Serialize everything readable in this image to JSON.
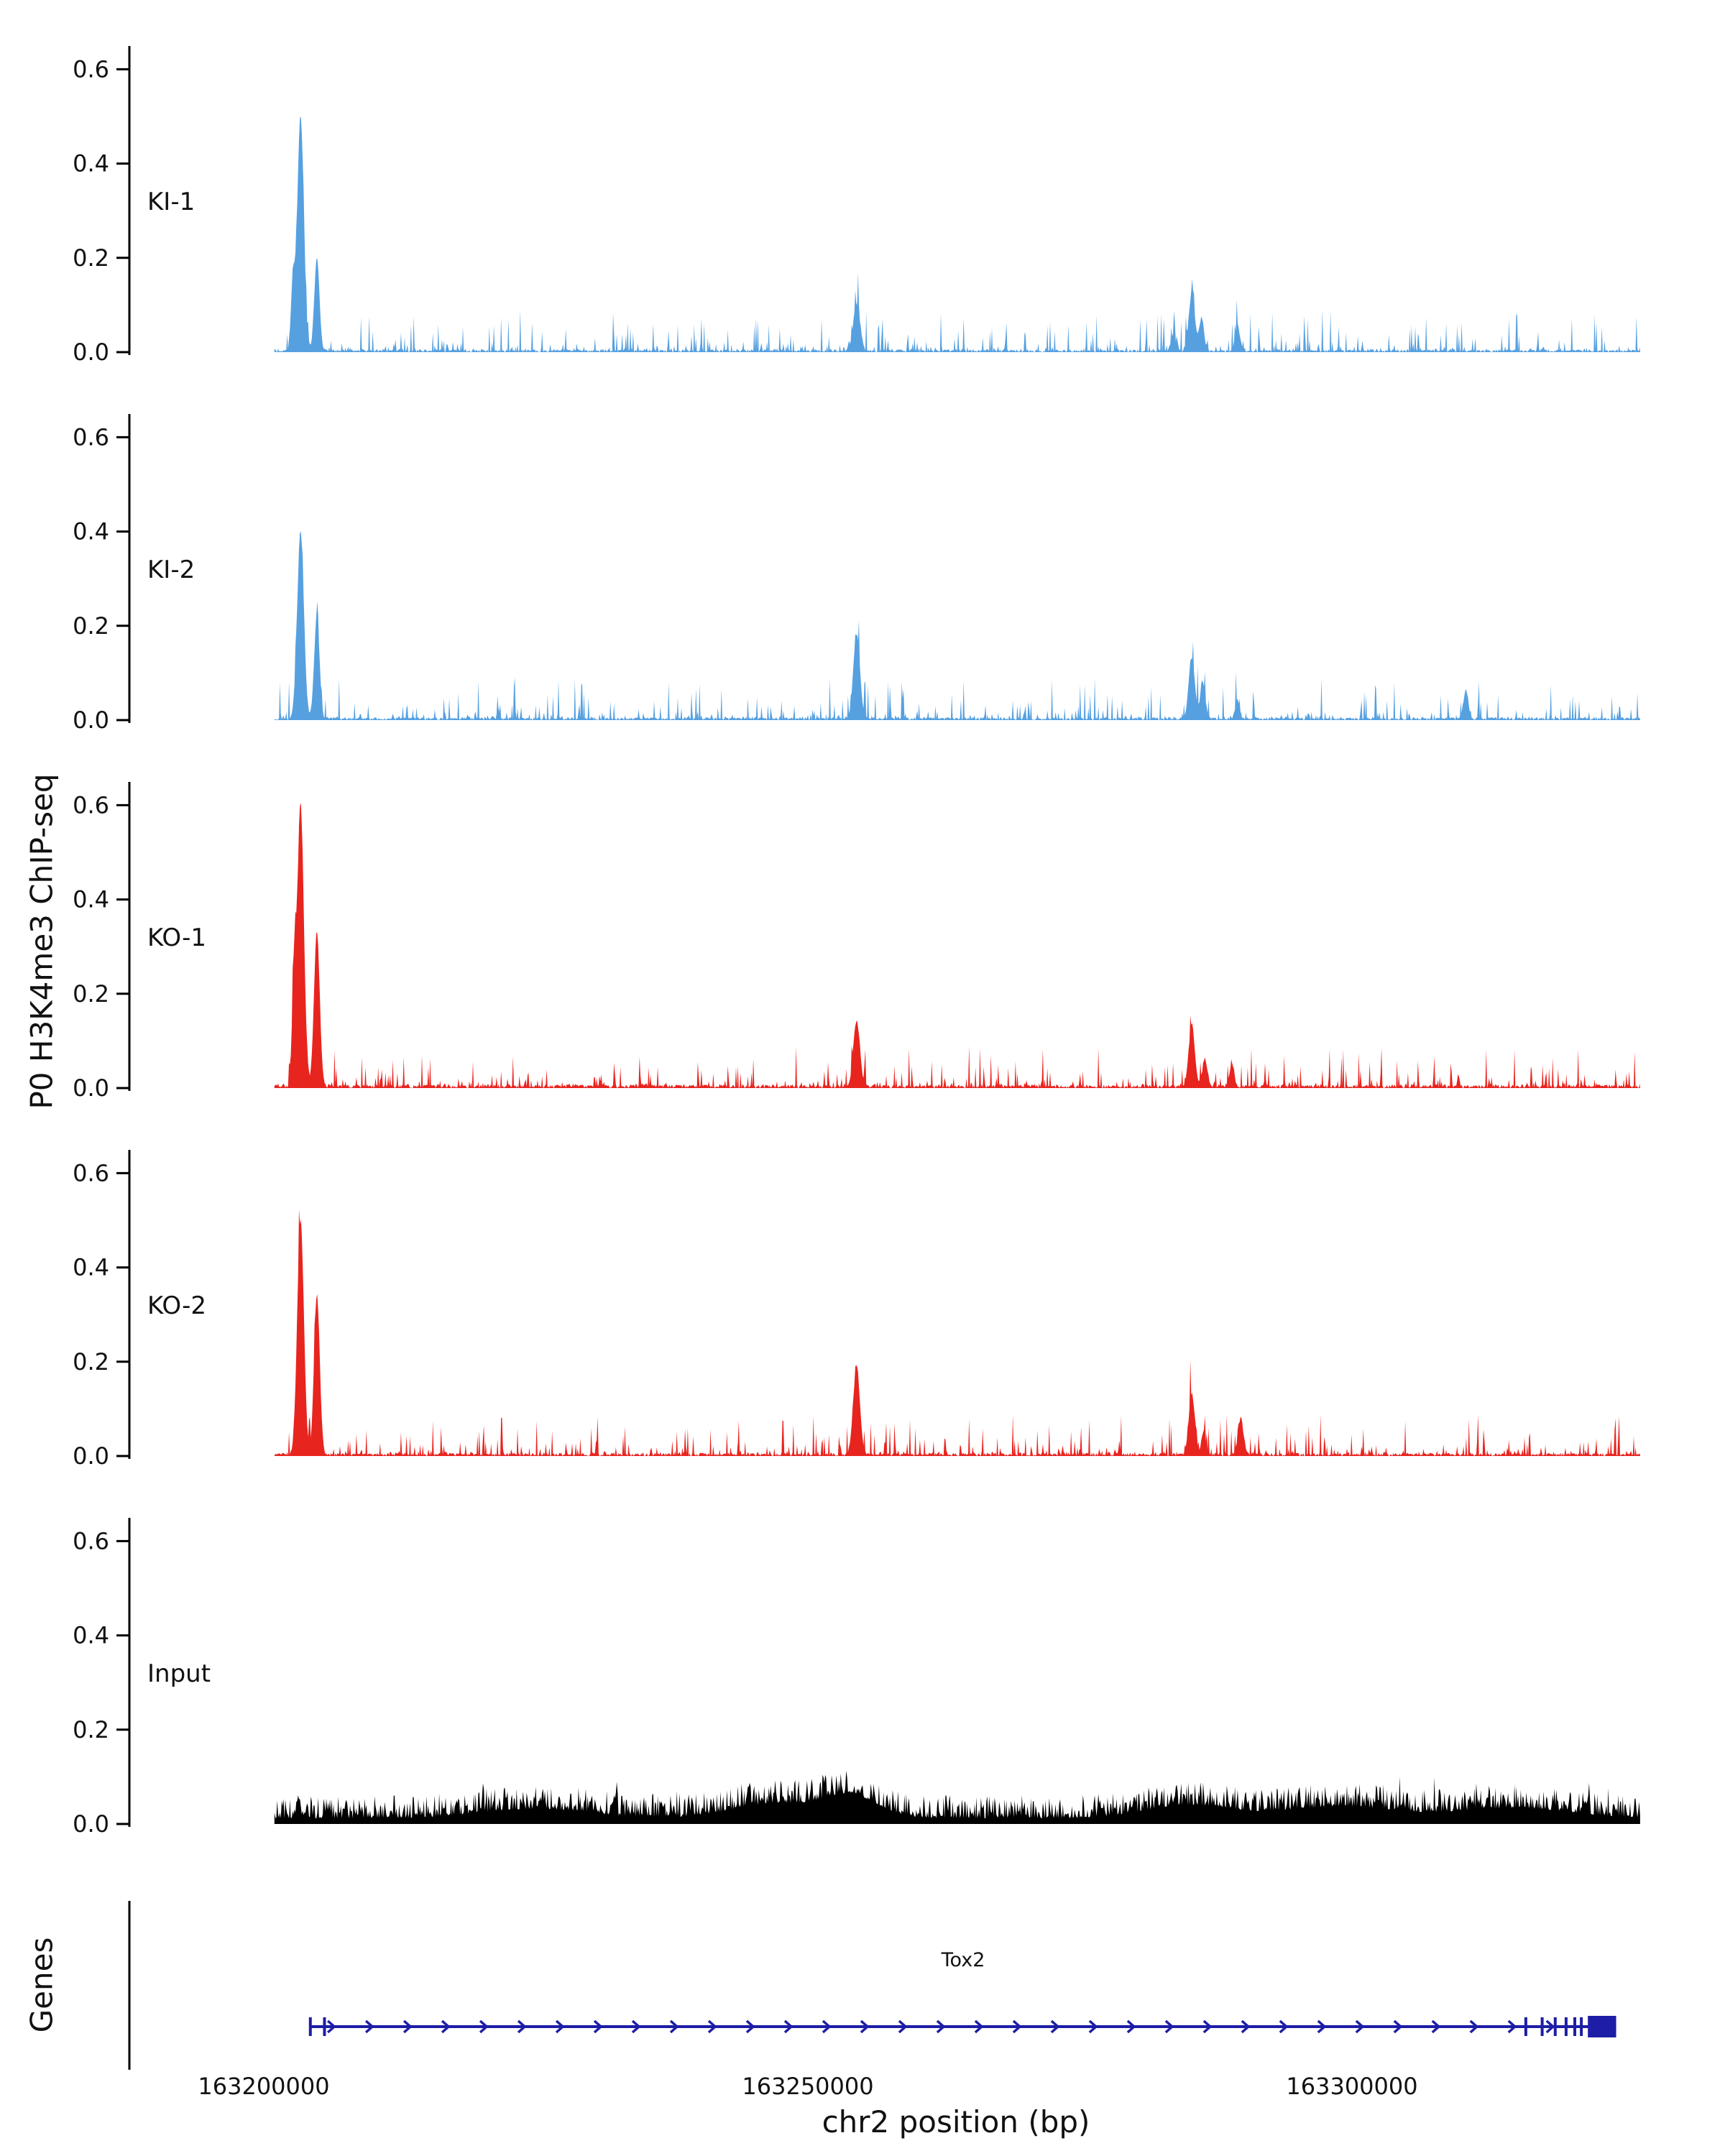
{
  "chart_data": {
    "type": "area",
    "title": "",
    "ylabel": "P0 H3K4me3 ChIP-seq",
    "xlabel": "chr2 position (bp)",
    "genes_axis_label": "Genes",
    "x_range_bp": [
      163188000,
      163331000
    ],
    "data_range_bp": [
      163201000,
      163326500
    ],
    "x_ticks": [
      163200000,
      163250000,
      163300000
    ],
    "y_ticks": [
      0,
      0.2,
      0.4,
      0.6
    ],
    "ylim": [
      0,
      0.66
    ],
    "grid": false,
    "legend": false,
    "tracks": [
      {
        "name": "KI-1",
        "color": "#56a0e0",
        "noise": 0.012,
        "noise_style": "sparse",
        "peaks": [
          [
            163202700,
            0.14,
            180
          ],
          [
            163203400,
            0.5,
            300
          ],
          [
            163204900,
            0.2,
            230
          ],
          [
            163254500,
            0.1,
            300
          ],
          [
            163285300,
            0.12,
            280
          ],
          [
            163286200,
            0.07,
            220
          ],
          [
            163283600,
            0.035,
            200
          ],
          [
            163289500,
            0.055,
            220
          ]
        ]
      },
      {
        "name": "KI-2",
        "color": "#56a0e0",
        "noise": 0.012,
        "noise_style": "sparse",
        "peaks": [
          [
            163203400,
            0.4,
            300
          ],
          [
            163204900,
            0.22,
            240
          ],
          [
            163254500,
            0.18,
            300
          ],
          [
            163285300,
            0.13,
            280
          ],
          [
            163286300,
            0.08,
            220
          ],
          [
            163289500,
            0.04,
            200
          ],
          [
            163310500,
            0.06,
            220
          ]
        ]
      },
      {
        "name": "KO-1",
        "color": "#e8241f",
        "noise": 0.015,
        "noise_style": "sparse",
        "peaks": [
          [
            163202800,
            0.22,
            180
          ],
          [
            163203400,
            0.6,
            300
          ],
          [
            163204900,
            0.33,
            260
          ],
          [
            163254500,
            0.14,
            300
          ],
          [
            163285300,
            0.13,
            280
          ],
          [
            163286500,
            0.06,
            220
          ],
          [
            163289000,
            0.05,
            200
          ]
        ]
      },
      {
        "name": "KO-2",
        "color": "#e8241f",
        "noise": 0.013,
        "noise_style": "sparse",
        "peaks": [
          [
            163203400,
            0.5,
            300
          ],
          [
            163204900,
            0.34,
            260
          ],
          [
            163254500,
            0.19,
            300
          ],
          [
            163285300,
            0.13,
            280
          ],
          [
            163286400,
            0.05,
            200
          ],
          [
            163289800,
            0.08,
            230
          ]
        ]
      },
      {
        "name": "Input",
        "color": "#000000",
        "noise": 0.035,
        "noise_style": "dense",
        "peaks": [
          [
            163225000,
            0.02,
            5000
          ],
          [
            163247000,
            0.03,
            4000
          ],
          [
            163254000,
            0.045,
            2500
          ],
          [
            163285000,
            0.028,
            4000
          ],
          [
            163299000,
            0.025,
            5000
          ],
          [
            163315000,
            0.022,
            5000
          ]
        ]
      }
    ],
    "gene": {
      "name": "Tox2",
      "chrom": "chr2",
      "start": 163204300,
      "end": 163324300,
      "strand": "+",
      "color": "#1d1da6",
      "exon_ticks": [
        163204300,
        163205600,
        163316000,
        163317500,
        163318700,
        163319700,
        163320500,
        163321100
      ],
      "terminal_exon": [
        163321700,
        163324300
      ]
    }
  }
}
